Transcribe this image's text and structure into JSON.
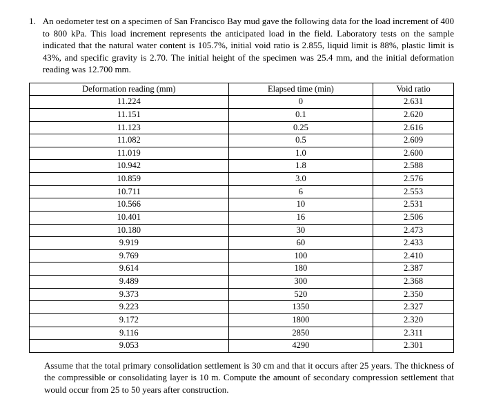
{
  "problem": {
    "number": "1.",
    "text": "An oedometer test on a specimen of San Francisco Bay mud gave the following data for the load increment of 400 to 800 kPa. This load increment represents the anticipated load in the field. Laboratory tests on the sample indicated that the natural water content is 105.7%, initial void ratio is 2.855, liquid limit is 88%, plastic limit is 43%, and specific gravity is 2.70. The initial height of the specimen was 25.4 mm, and the initial deformation reading was 12.700 mm."
  },
  "table": {
    "headers": [
      "Deformation reading (mm)",
      "Elapsed time (min)",
      "Void ratio"
    ],
    "rows": [
      [
        "11.224",
        "0",
        "2.631"
      ],
      [
        "11.151",
        "0.1",
        "2.620"
      ],
      [
        "11.123",
        "0.25",
        "2.616"
      ],
      [
        "11.082",
        "0.5",
        "2.609"
      ],
      [
        "11.019",
        "1.0",
        "2.600"
      ],
      [
        "10.942",
        "1.8",
        "2.588"
      ],
      [
        "10.859",
        "3.0",
        "2.576"
      ],
      [
        "10.711",
        "6",
        "2.553"
      ],
      [
        "10.566",
        "10",
        "2.531"
      ],
      [
        "10.401",
        "16",
        "2.506"
      ],
      [
        "10.180",
        "30",
        "2.473"
      ],
      [
        "9.919",
        "60",
        "2.433"
      ],
      [
        "9.769",
        "100",
        "2.410"
      ],
      [
        "9.614",
        "180",
        "2.387"
      ],
      [
        "9.489",
        "300",
        "2.368"
      ],
      [
        "9.373",
        "520",
        "2.350"
      ],
      [
        "9.223",
        "1350",
        "2.327"
      ],
      [
        "9.172",
        "1800",
        "2.320"
      ],
      [
        "9.116",
        "2850",
        "2.311"
      ],
      [
        "9.053",
        "4290",
        "2.301"
      ]
    ]
  },
  "footer": "Assume that the total primary consolidation settlement is 30 cm and that it occurs after 25 years. The thickness of the compressible or consolidating layer is 10 m. Compute the amount of secondary compression settlement that would occur from 25 to 50 years after construction."
}
